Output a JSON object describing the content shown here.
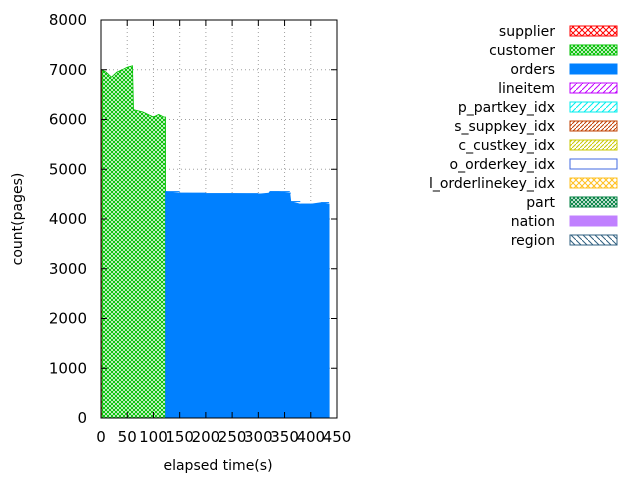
{
  "chart_data": {
    "type": "area",
    "xlabel": "elapsed time(s)",
    "ylabel": "count(pages)",
    "xlim": [
      0,
      450
    ],
    "ylim": [
      0,
      8000
    ],
    "x_ticks": [
      "0",
      "50",
      "100",
      "150",
      "200",
      "250",
      "300",
      "350",
      "400",
      "450"
    ],
    "y_ticks": [
      "0",
      "1000",
      "2000",
      "3000",
      "4000",
      "5000",
      "6000",
      "7000",
      "8000"
    ],
    "grid": true,
    "legend_position": "top-right",
    "series": [
      {
        "name": "supplier",
        "color": "#ff0000",
        "pattern": "crosshatch",
        "x": [
          0,
          2,
          2.2
        ],
        "y": [
          7000,
          7000,
          0
        ]
      },
      {
        "name": "customer",
        "color": "#00c000",
        "pattern": "crosshatch-dense",
        "x": [
          2.2,
          10,
          20,
          30,
          40,
          50,
          60,
          62,
          80,
          90,
          100,
          110,
          120,
          123,
          123.2
        ],
        "y": [
          7000,
          6950,
          6850,
          6950,
          7000,
          7050,
          7080,
          6200,
          6150,
          6100,
          6050,
          6100,
          6050,
          6050,
          0
        ]
      },
      {
        "name": "orders",
        "color": "#0080ff",
        "pattern": "solid",
        "x": [
          123.2,
          124,
          150,
          200,
          250,
          300,
          320,
          322,
          340,
          360,
          362,
          380,
          400,
          420,
          435,
          435.2
        ],
        "y": [
          4550,
          4550,
          4520,
          4510,
          4510,
          4500,
          4520,
          4550,
          4550,
          4520,
          4350,
          4300,
          4300,
          4330,
          4300,
          0
        ]
      },
      {
        "name": "lineitem",
        "color": "#c000ff",
        "pattern": "diagonal",
        "x": [],
        "y": []
      },
      {
        "name": "p_partkey_idx",
        "color": "#00eeee",
        "pattern": "diagonal",
        "x": [],
        "y": []
      },
      {
        "name": "s_suppkey_idx",
        "color": "#c04000",
        "pattern": "diagonal-dense",
        "x": [],
        "y": []
      },
      {
        "name": "c_custkey_idx",
        "color": "#c8c800",
        "pattern": "diagonal-dense",
        "x": [],
        "y": []
      },
      {
        "name": "o_orderkey_idx",
        "color": "#4169e1",
        "pattern": "outline",
        "x": [],
        "y": []
      },
      {
        "name": "l_orderlinekey_idx",
        "color": "#ffc020",
        "pattern": "crosshatch",
        "x": [],
        "y": []
      },
      {
        "name": "part",
        "color": "#008040",
        "pattern": "crosshatch-dense",
        "x": [],
        "y": []
      },
      {
        "name": "nation",
        "color": "#c080ff",
        "pattern": "solid",
        "x": [],
        "y": []
      },
      {
        "name": "region",
        "color": "#306080",
        "pattern": "antidiagonal",
        "x": [],
        "y": []
      }
    ]
  }
}
